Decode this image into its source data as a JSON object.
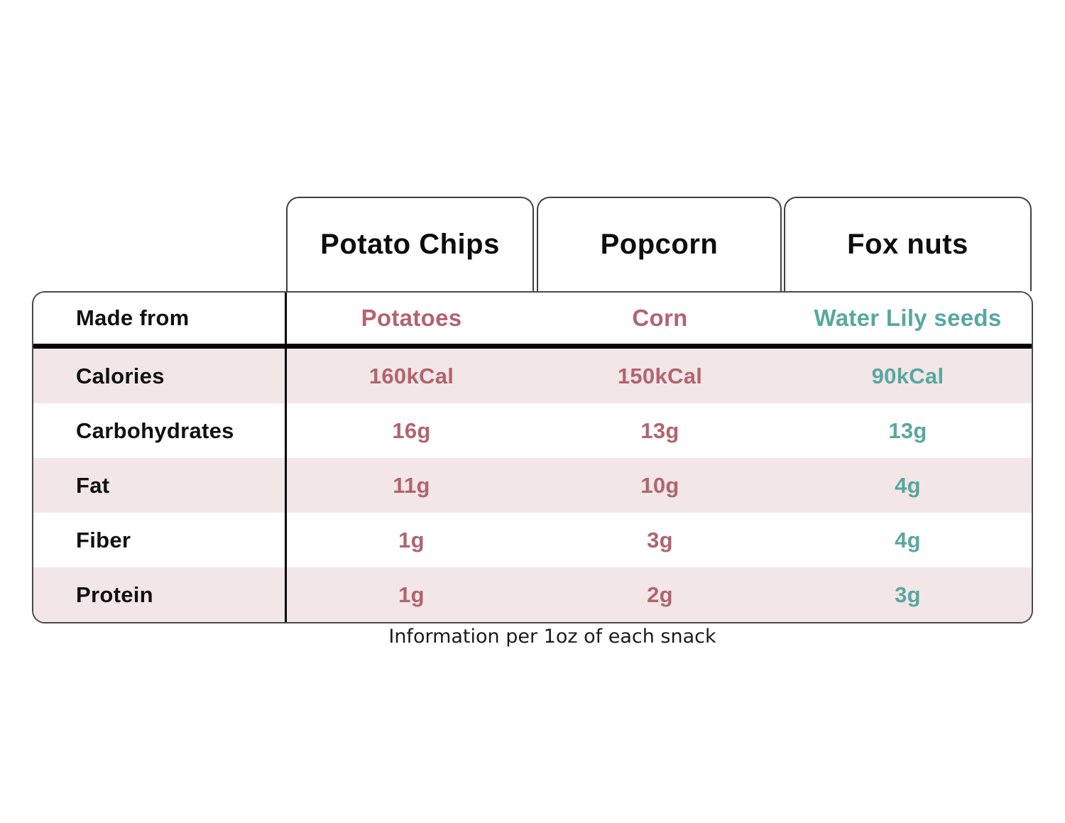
{
  "chart_data": {
    "type": "table",
    "columns": [
      "Potato Chips",
      "Popcorn",
      "Fox nuts"
    ],
    "row_labels": [
      "Made from",
      "Calories",
      "Carbohydrates",
      "Fat",
      "Fiber",
      "Protein"
    ],
    "rows": [
      [
        "Potatoes",
        "Corn",
        "Water Lily seeds"
      ],
      [
        "160kCal",
        "150kCal",
        "90kCal"
      ],
      [
        "16g",
        "13g",
        "13g"
      ],
      [
        "11g",
        "10g",
        "4g"
      ],
      [
        "1g",
        "3g",
        "4g"
      ],
      [
        "1g",
        "2g",
        "3g"
      ]
    ],
    "caption": "Information per 1oz of each snack",
    "layout_hints": {
      "stripe_rows": [
        "Calories",
        "Fat",
        "Protein"
      ],
      "value_colors": {
        "potato_chips": "#b16470",
        "popcorn": "#b16470",
        "fox_nuts": "#57a8a1"
      },
      "stripe_color": "#f2e6e6",
      "border_color": "#4a4a4a",
      "divider_color": "#000000"
    }
  }
}
